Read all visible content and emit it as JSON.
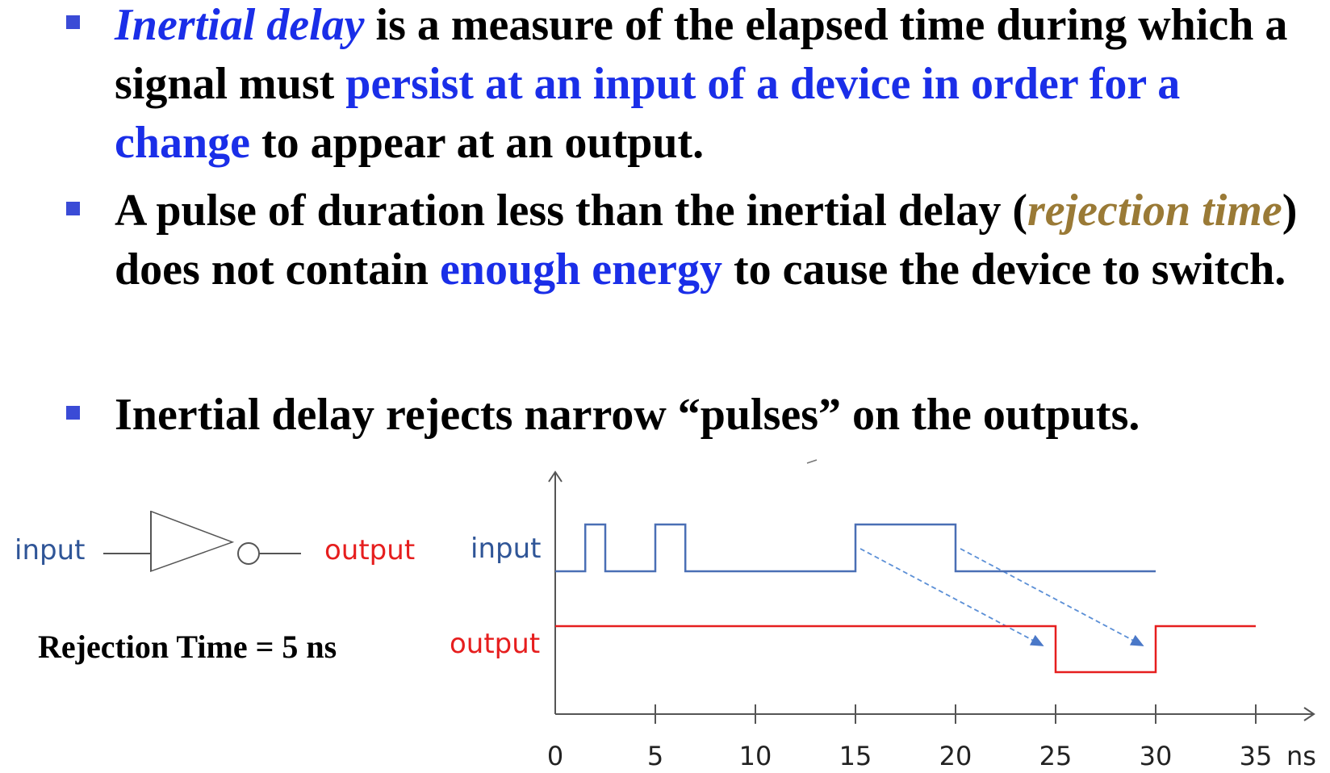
{
  "bullets": [
    {
      "segments": [
        {
          "text": "Inertial delay",
          "style": "italic-blue"
        },
        {
          "text": " is a measure of the elapsed time during which a signal must ",
          "style": "normal"
        },
        {
          "text": "persist at an input of a device in order for a change",
          "style": "blue"
        },
        {
          "text": " to appear at an output.",
          "style": "normal"
        }
      ]
    },
    {
      "segments": [
        {
          "text": "A pulse of duration less than the inertial delay (",
          "style": "normal"
        },
        {
          "text": "rejection time",
          "style": "italic-brown"
        },
        {
          "text": ") does not contain ",
          "style": "normal"
        },
        {
          "text": "enough energy",
          "style": "blue"
        },
        {
          "text": " to cause the device to switch.",
          "style": "normal"
        }
      ]
    },
    {
      "segments": [
        {
          "text": "Inertial delay rejects narrow “pulses” on the outputs.",
          "style": "normal"
        }
      ]
    }
  ],
  "gate": {
    "input_label": "input",
    "output_label": "output",
    "symbol": "inverter-icon"
  },
  "rejection_time_text": "Rejection Time = 5 ns",
  "timing": {
    "input_label": "input",
    "output_label": "output",
    "x_ticks": [
      "0",
      "5",
      "10",
      "15",
      "20",
      "25",
      "30",
      "35"
    ],
    "x_unit": "ns",
    "input_signal": [
      [
        0,
        0
      ],
      [
        1.5,
        1
      ],
      [
        2.5,
        0
      ],
      [
        5,
        1
      ],
      [
        6.5,
        0
      ],
      [
        15,
        1
      ],
      [
        20,
        0
      ],
      [
        30,
        0
      ]
    ],
    "output_signal": [
      [
        0,
        1
      ],
      [
        25,
        0
      ],
      [
        30,
        1
      ],
      [
        35,
        1
      ]
    ],
    "arrows": [
      [
        15,
        25
      ],
      [
        20,
        30
      ]
    ],
    "colors": {
      "input": "#4a6fb5",
      "output": "#e61e1e",
      "arrow": "#5b8fd6",
      "axis": "#555555"
    }
  }
}
